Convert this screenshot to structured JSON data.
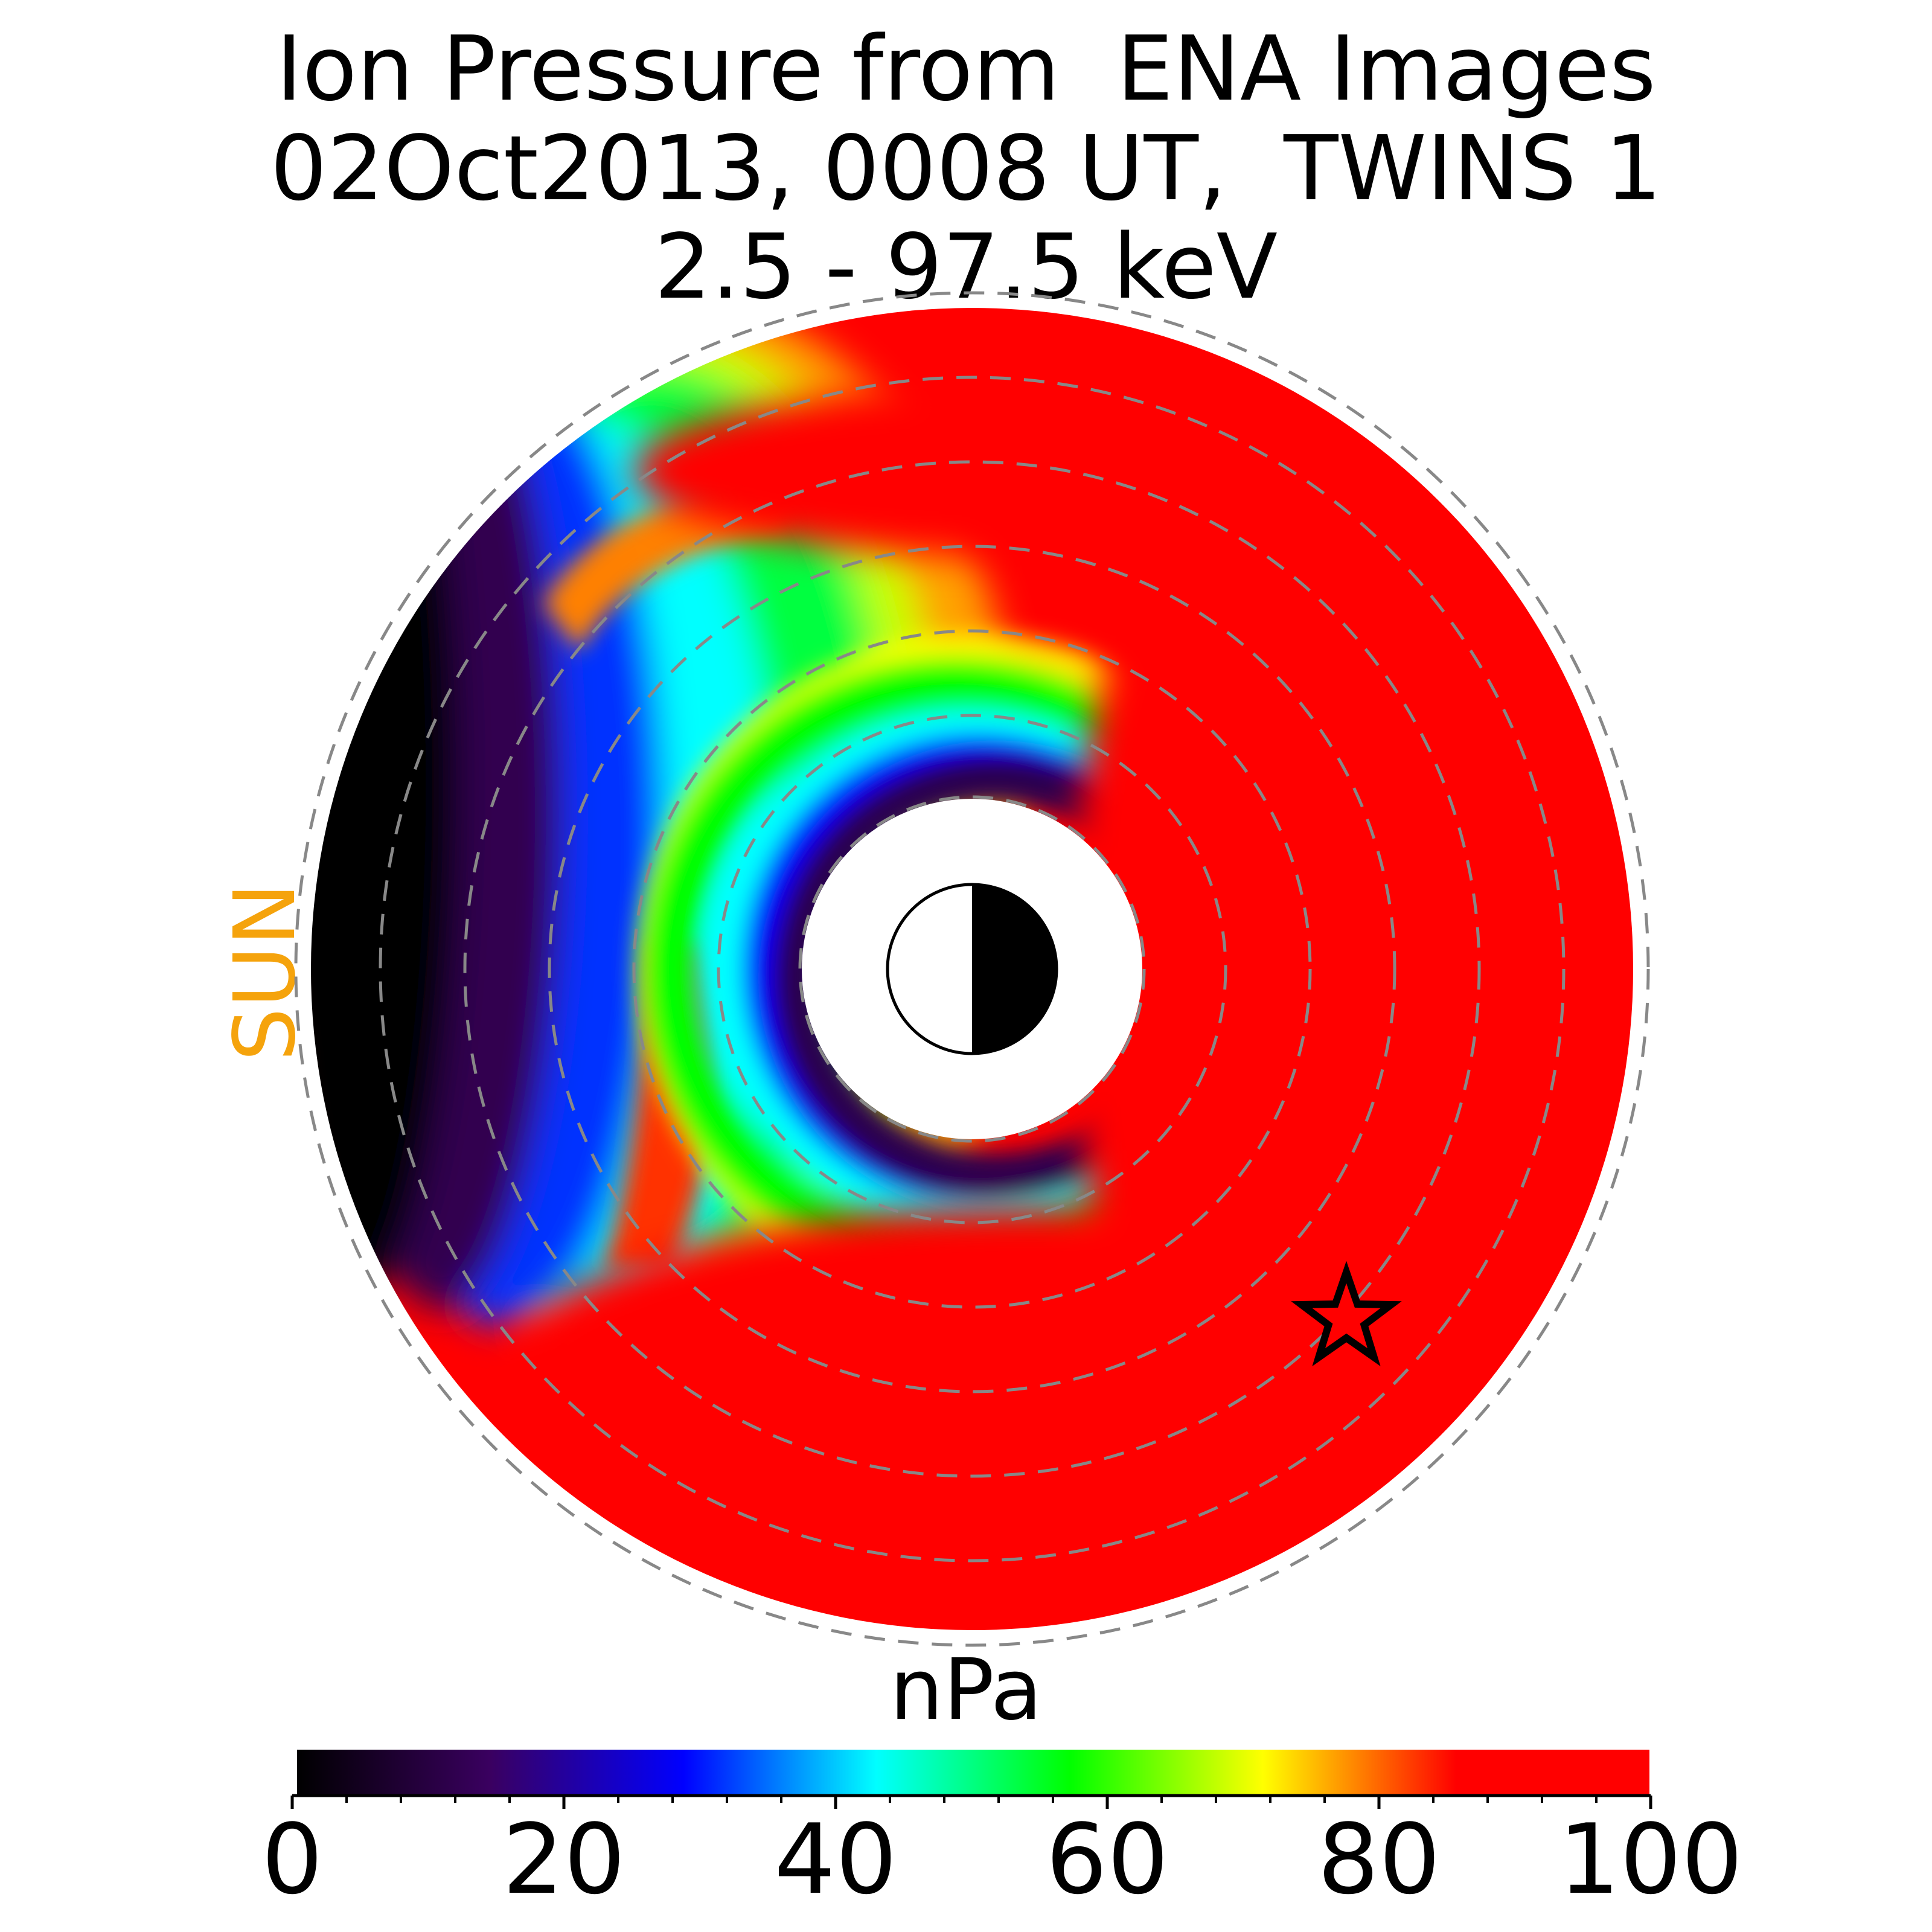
{
  "title": {
    "line1": "Ion Pressure from  ENA Images",
    "line2": "02Oct2013, 0008 UT,  TWINS 1",
    "line3": "2.5 - 97.5 keV"
  },
  "sun_label": "SUN",
  "colors": {
    "sun_label": "#f5a30c",
    "dashed_circles": "#888888",
    "saturated": "#ff0000"
  },
  "chart_data": {
    "type": "heatmap",
    "projection": "polar equatorial map, Sun to the left",
    "colorbar": {
      "label": "nPa",
      "range": [
        0,
        100
      ],
      "ticks": [
        0,
        20,
        40,
        60,
        80,
        100
      ],
      "tick_labels": [
        "0",
        "20",
        "40",
        "60",
        "80",
        "100"
      ],
      "minor_ticks_per_major": 4,
      "colormap": [
        "#000000",
        "#3a0060",
        "#0000ff",
        "#00ffff",
        "#00ff00",
        "#ffff00",
        "#ff0000",
        "#ff0000"
      ]
    },
    "marker": {
      "symbol": "star",
      "description": "spacecraft position"
    },
    "earth_symbol": "half dayside white, nightside black"
  }
}
